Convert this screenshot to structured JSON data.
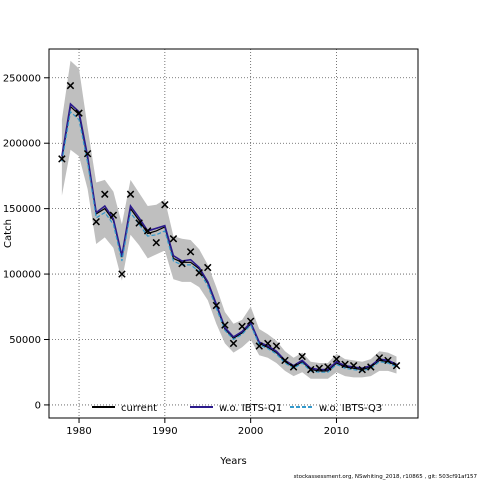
{
  "chart_data": {
    "type": "line",
    "xlabel": "Years",
    "ylabel": "Catch",
    "xlim": [
      1976.5,
      2019.5
    ],
    "ylim": [
      -10000,
      272000
    ],
    "x_ticks": [
      1980,
      1990,
      2000,
      2010
    ],
    "y_ticks": [
      0,
      50000,
      100000,
      150000,
      200000,
      250000
    ],
    "y_tick_labels": [
      "0",
      "50000",
      "100000",
      "150000",
      "200000",
      "250000"
    ],
    "grid": true,
    "legend_position": "bottom",
    "legend": [
      {
        "label": "current",
        "color": "#000000",
        "style": "solid"
      },
      {
        "label": "w.o. IBTS-Q1",
        "color": "#2b1a8c",
        "style": "solid"
      },
      {
        "label": "w.o. IBTS-Q3",
        "color": "#3399cc",
        "style": "dashed"
      }
    ],
    "years": [
      1978,
      1979,
      1980,
      1981,
      1982,
      1983,
      1984,
      1985,
      1986,
      1987,
      1988,
      1989,
      1990,
      1991,
      1992,
      1993,
      1994,
      1995,
      1996,
      1997,
      1998,
      1999,
      2000,
      2001,
      2002,
      2003,
      2004,
      2005,
      2006,
      2007,
      2008,
      2009,
      2010,
      2011,
      2012,
      2013,
      2014,
      2015,
      2016,
      2017
    ],
    "band_lower": [
      160000,
      195000,
      190000,
      165000,
      123000,
      128000,
      120000,
      95000,
      130000,
      122000,
      112000,
      115000,
      118000,
      96000,
      94000,
      94000,
      90000,
      80000,
      62000,
      47000,
      40000,
      44000,
      50000,
      38000,
      36000,
      32000,
      26000,
      22000,
      25000,
      20000,
      20000,
      20000,
      25000,
      22000,
      21000,
      21000,
      22000,
      26000,
      26000,
      24000
    ],
    "band_upper": [
      218000,
      263000,
      257000,
      212000,
      170000,
      172000,
      163000,
      138000,
      172000,
      162000,
      152000,
      153000,
      157000,
      129000,
      127000,
      126000,
      119000,
      107000,
      90000,
      71000,
      62000,
      65000,
      75000,
      58000,
      54000,
      49000,
      41000,
      36000,
      40000,
      33000,
      32000,
      32000,
      39000,
      35000,
      34000,
      33000,
      35000,
      41000,
      40000,
      37000
    ],
    "series": [
      {
        "name": "current",
        "color": "#000000",
        "dash": "",
        "values": [
          188000,
          228000,
          222000,
          188000,
          146000,
          150000,
          141000,
          113000,
          150000,
          141000,
          131000,
          133000,
          136000,
          112000,
          109000,
          109000,
          104000,
          93000,
          76000,
          58000,
          51000,
          55000,
          62000,
          47000,
          44000,
          40000,
          33000,
          29000,
          33000,
          27000,
          26000,
          26000,
          32000,
          29000,
          28000,
          27000,
          29000,
          34000,
          33000,
          30000
        ]
      },
      {
        "name": "w.o. IBTS-Q1",
        "color": "#2b1a8c",
        "dash": "",
        "values": [
          190000,
          230000,
          224000,
          190000,
          147000,
          152000,
          142000,
          114000,
          152000,
          143000,
          133000,
          135000,
          137000,
          114000,
          110000,
          111000,
          105000,
          94000,
          77000,
          59000,
          52000,
          56000,
          63000,
          48000,
          45000,
          41000,
          34000,
          30000,
          34000,
          28000,
          27000,
          27000,
          33000,
          30000,
          29000,
          28000,
          30000,
          35000,
          34000,
          31000
        ]
      },
      {
        "name": "w.o. IBTS-Q3",
        "color": "#3399cc",
        "dash": "4,2",
        "values": [
          186000,
          224000,
          218000,
          185000,
          143000,
          147000,
          138000,
          110000,
          147000,
          138000,
          129000,
          130000,
          133000,
          110000,
          107000,
          107000,
          102000,
          91000,
          74000,
          57000,
          50000,
          54000,
          61000,
          46000,
          43000,
          39000,
          32000,
          28000,
          32000,
          26000,
          25000,
          25000,
          31000,
          28000,
          27000,
          26000,
          28000,
          33000,
          32000,
          29000
        ]
      }
    ],
    "observations": {
      "marker": "x",
      "years": [
        1978,
        1979,
        1980,
        1981,
        1982,
        1983,
        1984,
        1985,
        1986,
        1987,
        1988,
        1989,
        1990,
        1991,
        1992,
        1993,
        1994,
        1995,
        1996,
        1997,
        1998,
        1999,
        2000,
        2001,
        2002,
        2003,
        2004,
        2005,
        2006,
        2007,
        2008,
        2009,
        2010,
        2011,
        2012,
        2013,
        2014,
        2015,
        2016,
        2017
      ],
      "values": [
        188000,
        244000,
        223000,
        192000,
        140000,
        161000,
        145000,
        100000,
        161000,
        139000,
        133000,
        124000,
        153000,
        127000,
        108000,
        117000,
        101000,
        105000,
        76000,
        61000,
        47000,
        60000,
        64000,
        45000,
        47000,
        45000,
        34000,
        29000,
        37000,
        27000,
        28000,
        29000,
        35000,
        31000,
        30000,
        27000,
        29000,
        36000,
        34000,
        30000
      ]
    },
    "footer": "stockassessment.org, NSwhiting_2018, r10865 , git: 503cf91af157"
  }
}
